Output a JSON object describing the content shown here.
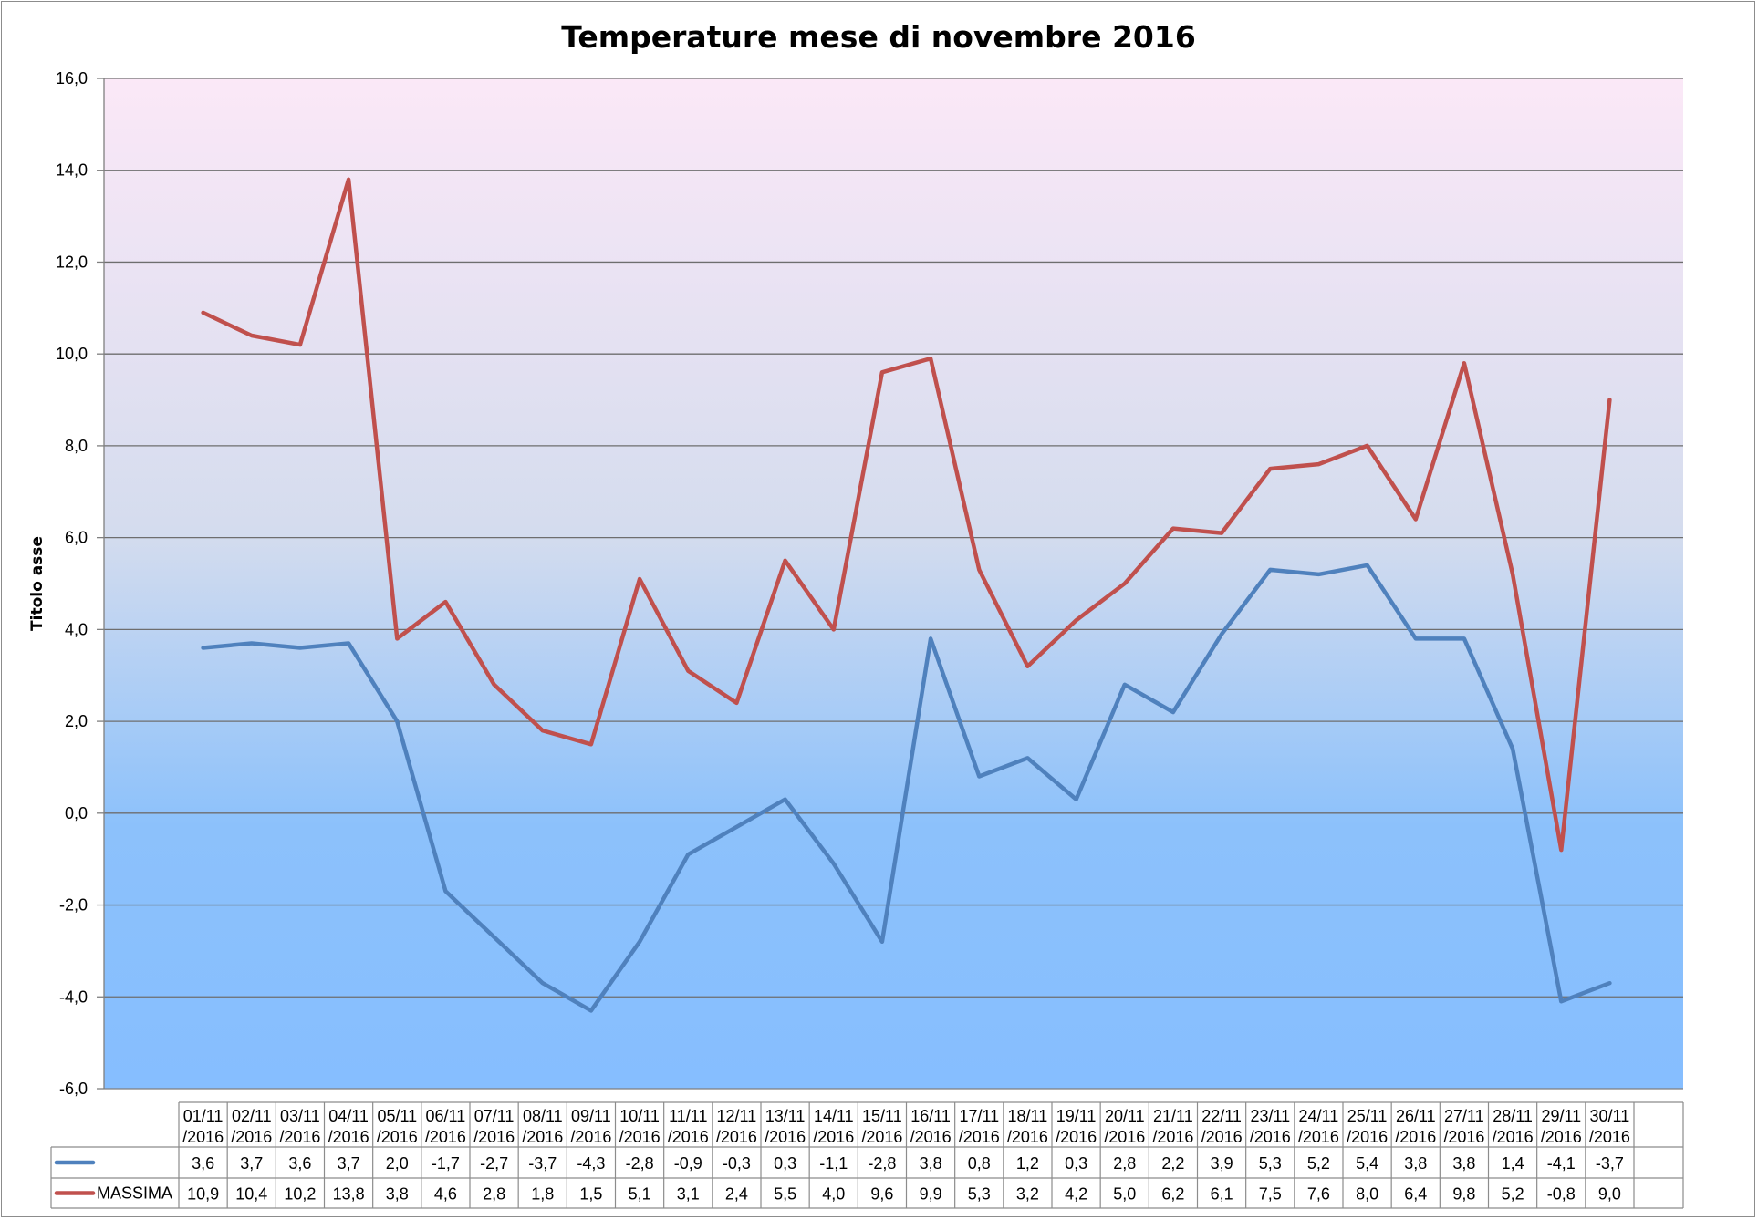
{
  "chart_data": {
    "type": "line",
    "title": "Temperature mese di novembre 2016",
    "ylabel": "Titolo asse",
    "xlabel": "",
    "ylim": [
      -6,
      16
    ],
    "ytick_step": 2,
    "ytick_labels": [
      "-6,0",
      "-4,0",
      "-2,0",
      "0,0",
      "2,0",
      "4,0",
      "6,0",
      "8,0",
      "10,0",
      "12,0",
      "14,0",
      "16,0"
    ],
    "grid": true,
    "legend": "data-table",
    "categories": [
      [
        "01/11",
        "/2016"
      ],
      [
        "02/11",
        "/2016"
      ],
      [
        "03/11",
        "/2016"
      ],
      [
        "04/11",
        "/2016"
      ],
      [
        "05/11",
        "/2016"
      ],
      [
        "06/11",
        "/2016"
      ],
      [
        "07/11",
        "/2016"
      ],
      [
        "08/11",
        "/2016"
      ],
      [
        "09/11",
        "/2016"
      ],
      [
        "10/11",
        "/2016"
      ],
      [
        "11/11",
        "/2016"
      ],
      [
        "12/11",
        "/2016"
      ],
      [
        "13/11",
        "/2016"
      ],
      [
        "14/11",
        "/2016"
      ],
      [
        "15/11",
        "/2016"
      ],
      [
        "16/11",
        "/2016"
      ],
      [
        "17/11",
        "/2016"
      ],
      [
        "18/11",
        "/2016"
      ],
      [
        "19/11",
        "/2016"
      ],
      [
        "20/11",
        "/2016"
      ],
      [
        "21/11",
        "/2016"
      ],
      [
        "22/11",
        "/2016"
      ],
      [
        "23/11",
        "/2016"
      ],
      [
        "24/11",
        "/2016"
      ],
      [
        "25/11",
        "/2016"
      ],
      [
        "26/11",
        "/2016"
      ],
      [
        "27/11",
        "/2016"
      ],
      [
        "28/11",
        "/2016"
      ],
      [
        "29/11",
        "/2016"
      ],
      [
        "30/11",
        "/2016"
      ]
    ],
    "series": [
      {
        "name": "",
        "color": "#4f81bd",
        "values": [
          3.6,
          3.7,
          3.6,
          3.7,
          2.0,
          -1.7,
          -2.7,
          -3.7,
          -4.3,
          -2.8,
          -0.9,
          -0.3,
          0.3,
          -1.1,
          -2.8,
          3.8,
          0.8,
          1.2,
          0.3,
          2.8,
          2.2,
          3.9,
          5.3,
          5.2,
          5.4,
          3.8,
          3.8,
          1.4,
          -4.1,
          -3.7
        ],
        "labels": [
          "3,6",
          "3,7",
          "3,6",
          "3,7",
          "2,0",
          "-1,7",
          "-2,7",
          "-3,7",
          "-4,3",
          "-2,8",
          "-0,9",
          "-0,3",
          "0,3",
          "-1,1",
          "-2,8",
          "3,8",
          "0,8",
          "1,2",
          "0,3",
          "2,8",
          "2,2",
          "3,9",
          "5,3",
          "5,2",
          "5,4",
          "3,8",
          "3,8",
          "1,4",
          "-4,1",
          "-3,7"
        ]
      },
      {
        "name": "MASSIMA",
        "color": "#c0504d",
        "values": [
          10.9,
          10.4,
          10.2,
          13.8,
          3.8,
          4.6,
          2.8,
          1.8,
          1.5,
          5.1,
          3.1,
          2.4,
          5.5,
          4.0,
          9.6,
          9.9,
          5.3,
          3.2,
          4.2,
          5.0,
          6.2,
          6.1,
          7.5,
          7.6,
          8.0,
          6.4,
          9.8,
          5.2,
          -0.8,
          9.0
        ],
        "labels": [
          "10,9",
          "10,4",
          "10,2",
          "13,8",
          "3,8",
          "4,6",
          "2,8",
          "1,8",
          "1,5",
          "5,1",
          "3,1",
          "2,4",
          "5,5",
          "4,0",
          "9,6",
          "9,9",
          "5,3",
          "3,2",
          "4,2",
          "5,0",
          "6,2",
          "6,1",
          "7,5",
          "7,6",
          "8,0",
          "6,4",
          "9,8",
          "5,2",
          "-0,8",
          "9,0"
        ]
      }
    ]
  }
}
